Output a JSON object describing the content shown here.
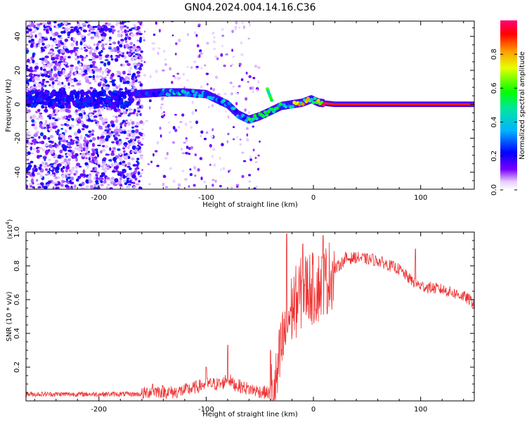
{
  "title": "GN04.2024.004.14.16.C36",
  "chart_data": [
    {
      "type": "heatmap",
      "xlabel": "Height of straight line (km)",
      "ylabel": "Frequency (Hz)",
      "xlim": [
        -268,
        150
      ],
      "ylim": [
        -50,
        49
      ],
      "xticks": [
        -200,
        -100,
        0,
        100
      ],
      "yticks": [
        -40,
        -20,
        0,
        20,
        40
      ],
      "colorbar": {
        "label": "Normalized spectral amplitude",
        "range": [
          0,
          1
        ],
        "ticks": [
          0.0,
          0.2,
          0.4,
          0.6,
          0.8
        ]
      },
      "ridge": {
        "description_points_x": [
          -165,
          -140,
          -120,
          -100,
          -90,
          -80,
          -70,
          -60,
          -50,
          -40,
          -30,
          -20,
          -10,
          -2,
          5,
          20,
          60,
          100,
          150
        ],
        "description_points_y": [
          6,
          7,
          7,
          6,
          3,
          0,
          -6,
          -9,
          -7,
          -4,
          -1,
          0,
          1,
          3,
          1,
          0,
          0,
          0,
          0
        ]
      },
      "grid": false
    },
    {
      "type": "line",
      "xlabel": "Height of straight line (km)",
      "ylabel": "SNR (10 * v/v)",
      "yscale_label": "(x10",
      "yscale_exp": "4",
      "xlim": [
        -268,
        150
      ],
      "ylim": [
        0,
        1.0
      ],
      "xticks": [
        -200,
        -100,
        0,
        100
      ],
      "yticks": [
        0.2,
        0.4,
        0.6,
        0.8,
        1.0
      ],
      "series": [
        {
          "color": "#ee3333",
          "x": [
            -268,
            -200,
            -160,
            -150,
            -130,
            -115,
            -100,
            -85,
            -80,
            -75,
            -60,
            -45,
            -36,
            -30,
            -25,
            -20,
            -15,
            -10,
            -5,
            0,
            10,
            20,
            30,
            40,
            60,
            80,
            90,
            100,
            120,
            140,
            150
          ],
          "y": [
            0.04,
            0.04,
            0.04,
            0.06,
            0.05,
            0.07,
            0.1,
            0.1,
            0.14,
            0.1,
            0.07,
            0.05,
            0.04,
            0.3,
            0.45,
            0.55,
            0.6,
            0.65,
            0.68,
            0.66,
            0.7,
            0.78,
            0.84,
            0.85,
            0.83,
            0.78,
            0.72,
            0.68,
            0.66,
            0.62,
            0.58
          ]
        }
      ],
      "spikes": [
        {
          "x": -150,
          "y": 0.1
        },
        {
          "x": -100,
          "y": 0.2
        },
        {
          "x": -80,
          "y": 0.33
        },
        {
          "x": -40,
          "y": 0.3
        },
        {
          "x": -25,
          "y": 0.99
        },
        {
          "x": -10,
          "y": 0.93
        },
        {
          "x": 9,
          "y": 0.98
        },
        {
          "x": 30,
          "y": 0.88
        },
        {
          "x": 55,
          "y": 0.87
        },
        {
          "x": 95,
          "y": 0.9
        }
      ],
      "grid": false
    }
  ]
}
